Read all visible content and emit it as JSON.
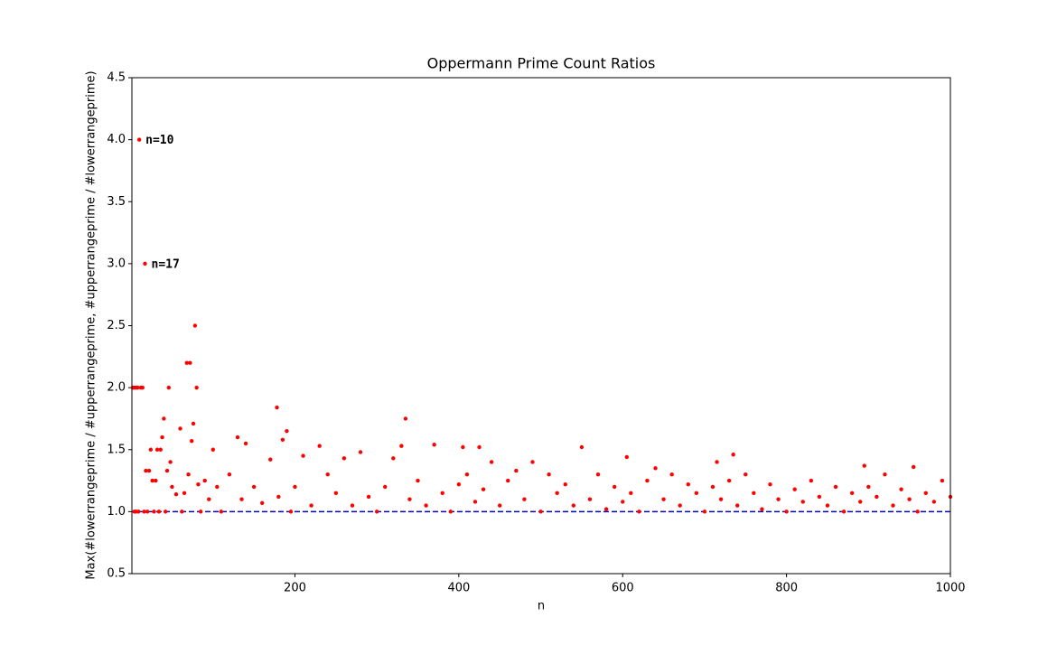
{
  "chart_data": {
    "type": "scatter",
    "title": "Oppermann Prime Count Ratios",
    "xlabel": "n",
    "ylabel": "Max(#lowerrangeprime / #upperrangeprime, #upperrangeprime / #lowerrangeprime)",
    "series": [
      {
        "color": "#ff0000",
        "x": [
          2,
          3,
          4,
          5,
          6,
          7,
          8,
          9,
          10,
          12,
          14,
          16,
          17,
          18,
          20,
          22,
          24,
          26,
          28,
          30,
          32,
          34,
          36,
          38,
          40,
          42,
          44,
          46,
          48,
          50,
          55,
          60,
          62,
          65,
          68,
          70,
          72,
          74,
          76,
          78,
          80,
          82,
          85,
          90,
          95,
          100,
          105,
          110,
          120,
          130,
          135,
          140,
          150,
          160,
          170,
          178,
          180,
          185,
          190,
          195,
          200,
          210,
          220,
          230,
          240,
          250,
          260,
          270,
          280,
          290,
          300,
          310,
          320,
          330,
          335,
          340,
          350,
          360,
          370,
          380,
          390,
          400,
          405,
          410,
          420,
          425,
          430,
          440,
          450,
          460,
          470,
          480,
          490,
          500,
          510,
          520,
          530,
          540,
          550,
          560,
          570,
          580,
          590,
          600,
          605,
          610,
          620,
          630,
          640,
          650,
          660,
          670,
          680,
          690,
          700,
          710,
          715,
          720,
          730,
          735,
          740,
          750,
          760,
          770,
          780,
          790,
          800,
          810,
          820,
          830,
          840,
          850,
          860,
          870,
          880,
          890,
          895,
          900,
          910,
          920,
          930,
          940,
          950,
          955,
          960,
          970,
          980,
          990,
          1000
        ],
        "values": [
          2,
          2,
          1,
          2,
          1,
          2,
          2,
          1,
          4,
          2,
          2,
          1,
          3,
          1.33,
          1,
          1.33,
          1.5,
          1.25,
          1,
          1.25,
          1.5,
          1,
          1.5,
          1.6,
          1.75,
          1,
          1.33,
          2,
          1.4,
          1.2,
          1.14,
          1.67,
          1,
          1.15,
          2.2,
          1.3,
          2.2,
          1.57,
          1.71,
          2.5,
          2,
          1.22,
          1,
          1.25,
          1.1,
          1.5,
          1.2,
          1,
          1.3,
          1.6,
          1.1,
          1.55,
          1.2,
          1.07,
          1.42,
          1.84,
          1.12,
          1.58,
          1.65,
          1,
          1.2,
          1.45,
          1.05,
          1.53,
          1.3,
          1.15,
          1.43,
          1.05,
          1.48,
          1.12,
          1,
          1.2,
          1.43,
          1.53,
          1.75,
          1.1,
          1.25,
          1.05,
          1.54,
          1.15,
          1,
          1.22,
          1.52,
          1.3,
          1.08,
          1.52,
          1.18,
          1.4,
          1.05,
          1.25,
          1.33,
          1.1,
          1.4,
          1,
          1.3,
          1.15,
          1.22,
          1.05,
          1.52,
          1.1,
          1.3,
          1.02,
          1.2,
          1.08,
          1.44,
          1.15,
          1,
          1.25,
          1.35,
          1.1,
          1.3,
          1.05,
          1.22,
          1.15,
          1,
          1.2,
          1.4,
          1.1,
          1.25,
          1.46,
          1.05,
          1.3,
          1.15,
          1.02,
          1.22,
          1.1,
          1,
          1.18,
          1.08,
          1.25,
          1.12,
          1.05,
          1.2,
          1,
          1.15,
          1.08,
          1.37,
          1.2,
          1.12,
          1.3,
          1.05,
          1.18,
          1.1,
          1.36,
          1,
          1.15,
          1.08,
          1.25,
          1.12
        ]
      }
    ],
    "hline": {
      "value": 1,
      "color": "#0000cc",
      "style": "dashed"
    },
    "annotations": [
      {
        "text": "n=10",
        "x": 10,
        "y": 4
      },
      {
        "text": "n=17",
        "x": 17,
        "y": 3
      }
    ],
    "xlim": [
      1,
      1000
    ],
    "xticks": [
      200,
      400,
      600,
      800,
      1000
    ],
    "ylim": [
      0.5,
      4.5
    ],
    "yticks": [
      0.5,
      {
        "value": 1,
        "label": "1.0"
      },
      1.5,
      {
        "value": 2,
        "label": "2.0"
      },
      2.5,
      {
        "value": 3,
        "label": "3.0"
      },
      3.5,
      {
        "value": 4,
        "label": "4.0"
      },
      4.5
    ],
    "grid": false
  }
}
